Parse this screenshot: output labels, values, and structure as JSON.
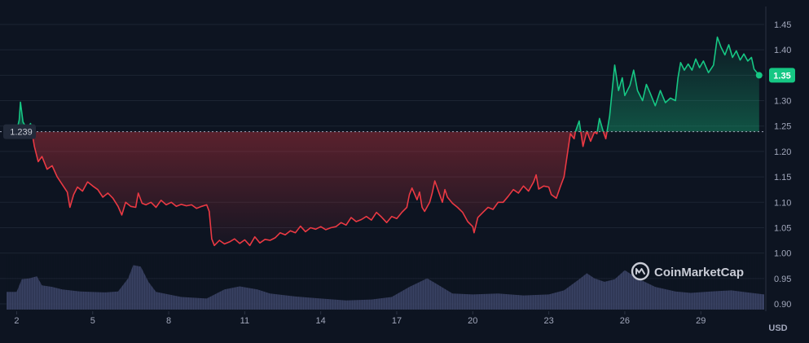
{
  "chart_data": {
    "type": "line",
    "unit": "USD",
    "baseline": {
      "value": 1.239,
      "label": "1.239"
    },
    "current": {
      "value": 1.35,
      "label": "1.35"
    },
    "ylim": [
      0.9,
      1.45
    ],
    "price_range": [
      1.0,
      1.45
    ],
    "y_ticks": [
      "1.45",
      "1.40",
      "1.35",
      "1.30",
      "1.25",
      "1.20",
      "1.15",
      "1.10",
      "1.05",
      "1.00",
      "0.95",
      "0.90"
    ],
    "x_ticks": [
      "2",
      "5",
      "8",
      "11",
      "14",
      "17",
      "20",
      "23",
      "26",
      "29"
    ],
    "xlim": [
      1.6,
      31.5
    ],
    "colors": {
      "up": "#16c784",
      "down": "#ea3943",
      "volume": "#424a6e",
      "background": "#0d1421",
      "grid": "#1c2433"
    },
    "watermark": "CoinMarketCap",
    "grid": true,
    "series": [
      {
        "values": [
          [
            2.0,
            1.24
          ],
          [
            2.1,
            1.262
          ],
          [
            2.15,
            1.297
          ],
          [
            2.25,
            1.258
          ],
          [
            2.4,
            1.245
          ],
          [
            2.55,
            1.255
          ],
          [
            2.7,
            1.21
          ],
          [
            2.85,
            1.18
          ],
          [
            3.0,
            1.19
          ],
          [
            3.2,
            1.165
          ],
          [
            3.4,
            1.172
          ],
          [
            3.6,
            1.15
          ],
          [
            3.8,
            1.135
          ],
          [
            4.0,
            1.12
          ],
          [
            4.1,
            1.09
          ],
          [
            4.25,
            1.115
          ],
          [
            4.4,
            1.13
          ],
          [
            4.6,
            1.122
          ],
          [
            4.8,
            1.14
          ],
          [
            5.0,
            1.132
          ],
          [
            5.2,
            1.125
          ],
          [
            5.4,
            1.11
          ],
          [
            5.6,
            1.118
          ],
          [
            5.8,
            1.108
          ],
          [
            6.0,
            1.092
          ],
          [
            6.15,
            1.075
          ],
          [
            6.3,
            1.1
          ],
          [
            6.5,
            1.092
          ],
          [
            6.7,
            1.09
          ],
          [
            6.8,
            1.118
          ],
          [
            6.95,
            1.098
          ],
          [
            7.1,
            1.095
          ],
          [
            7.3,
            1.1
          ],
          [
            7.5,
            1.09
          ],
          [
            7.7,
            1.104
          ],
          [
            7.9,
            1.095
          ],
          [
            8.1,
            1.1
          ],
          [
            8.3,
            1.092
          ],
          [
            8.5,
            1.096
          ],
          [
            8.7,
            1.093
          ],
          [
            8.9,
            1.095
          ],
          [
            9.1,
            1.088
          ],
          [
            9.3,
            1.092
          ],
          [
            9.5,
            1.095
          ],
          [
            9.6,
            1.082
          ],
          [
            9.7,
            1.028
          ],
          [
            9.8,
            1.015
          ],
          [
            10.0,
            1.025
          ],
          [
            10.2,
            1.018
          ],
          [
            10.4,
            1.022
          ],
          [
            10.6,
            1.028
          ],
          [
            10.8,
            1.019
          ],
          [
            11.0,
            1.026
          ],
          [
            11.2,
            1.015
          ],
          [
            11.4,
            1.032
          ],
          [
            11.6,
            1.02
          ],
          [
            11.8,
            1.027
          ],
          [
            12.0,
            1.025
          ],
          [
            12.2,
            1.03
          ],
          [
            12.4,
            1.04
          ],
          [
            12.6,
            1.036
          ],
          [
            12.8,
            1.044
          ],
          [
            13.0,
            1.04
          ],
          [
            13.2,
            1.053
          ],
          [
            13.4,
            1.042
          ],
          [
            13.6,
            1.05
          ],
          [
            13.8,
            1.047
          ],
          [
            14.0,
            1.052
          ],
          [
            14.2,
            1.046
          ],
          [
            14.4,
            1.05
          ],
          [
            14.6,
            1.052
          ],
          [
            14.8,
            1.06
          ],
          [
            15.0,
            1.055
          ],
          [
            15.2,
            1.07
          ],
          [
            15.4,
            1.062
          ],
          [
            15.6,
            1.066
          ],
          [
            15.8,
            1.072
          ],
          [
            16.0,
            1.065
          ],
          [
            16.2,
            1.08
          ],
          [
            16.4,
            1.071
          ],
          [
            16.6,
            1.06
          ],
          [
            16.8,
            1.072
          ],
          [
            17.0,
            1.068
          ],
          [
            17.2,
            1.08
          ],
          [
            17.4,
            1.09
          ],
          [
            17.5,
            1.115
          ],
          [
            17.6,
            1.128
          ],
          [
            17.8,
            1.105
          ],
          [
            17.9,
            1.12
          ],
          [
            18.0,
            1.09
          ],
          [
            18.1,
            1.082
          ],
          [
            18.3,
            1.1
          ],
          [
            18.4,
            1.118
          ],
          [
            18.5,
            1.142
          ],
          [
            18.6,
            1.128
          ],
          [
            18.8,
            1.1
          ],
          [
            18.9,
            1.125
          ],
          [
            19.0,
            1.11
          ],
          [
            19.2,
            1.098
          ],
          [
            19.4,
            1.09
          ],
          [
            19.6,
            1.08
          ],
          [
            19.8,
            1.062
          ],
          [
            20.0,
            1.052
          ],
          [
            20.05,
            1.04
          ],
          [
            20.2,
            1.07
          ],
          [
            20.4,
            1.08
          ],
          [
            20.6,
            1.09
          ],
          [
            20.8,
            1.086
          ],
          [
            21.0,
            1.1
          ],
          [
            21.2,
            1.1
          ],
          [
            21.4,
            1.112
          ],
          [
            21.6,
            1.125
          ],
          [
            21.8,
            1.118
          ],
          [
            22.0,
            1.132
          ],
          [
            22.2,
            1.122
          ],
          [
            22.4,
            1.14
          ],
          [
            22.5,
            1.154
          ],
          [
            22.6,
            1.126
          ],
          [
            22.8,
            1.132
          ],
          [
            23.0,
            1.13
          ],
          [
            23.1,
            1.115
          ],
          [
            23.3,
            1.108
          ],
          [
            23.45,
            1.13
          ],
          [
            23.6,
            1.15
          ],
          [
            23.75,
            1.2
          ],
          [
            23.85,
            1.235
          ],
          [
            24.0,
            1.225
          ],
          [
            24.05,
            1.239
          ],
          [
            24.2,
            1.26
          ],
          [
            24.35,
            1.21
          ],
          [
            24.5,
            1.24
          ],
          [
            24.65,
            1.22
          ],
          [
            24.8,
            1.238
          ],
          [
            24.9,
            1.235
          ],
          [
            25.0,
            1.265
          ],
          [
            25.15,
            1.239
          ],
          [
            25.25,
            1.225
          ],
          [
            25.4,
            1.27
          ],
          [
            25.5,
            1.32
          ],
          [
            25.6,
            1.37
          ],
          [
            25.75,
            1.32
          ],
          [
            25.9,
            1.345
          ],
          [
            26.0,
            1.31
          ],
          [
            26.2,
            1.33
          ],
          [
            26.35,
            1.36
          ],
          [
            26.5,
            1.32
          ],
          [
            26.7,
            1.3
          ],
          [
            26.85,
            1.332
          ],
          [
            27.0,
            1.315
          ],
          [
            27.2,
            1.29
          ],
          [
            27.4,
            1.32
          ],
          [
            27.6,
            1.296
          ],
          [
            27.8,
            1.305
          ],
          [
            28.0,
            1.3
          ],
          [
            28.1,
            1.345
          ],
          [
            28.2,
            1.375
          ],
          [
            28.35,
            1.36
          ],
          [
            28.5,
            1.372
          ],
          [
            28.65,
            1.36
          ],
          [
            28.8,
            1.382
          ],
          [
            28.95,
            1.365
          ],
          [
            29.1,
            1.378
          ],
          [
            29.3,
            1.355
          ],
          [
            29.5,
            1.37
          ],
          [
            29.65,
            1.425
          ],
          [
            29.8,
            1.405
          ],
          [
            29.95,
            1.39
          ],
          [
            30.1,
            1.41
          ],
          [
            30.25,
            1.385
          ],
          [
            30.4,
            1.398
          ],
          [
            30.55,
            1.38
          ],
          [
            30.7,
            1.392
          ],
          [
            30.85,
            1.378
          ],
          [
            31.0,
            1.385
          ],
          [
            31.1,
            1.362
          ],
          [
            31.3,
            1.35
          ]
        ]
      }
    ],
    "volume": {
      "ylim": [
        0,
        1
      ],
      "values": [
        [
          1.6,
          0.35
        ],
        [
          2.0,
          0.35
        ],
        [
          2.2,
          0.6
        ],
        [
          2.5,
          0.62
        ],
        [
          2.8,
          0.66
        ],
        [
          3.0,
          0.48
        ],
        [
          3.4,
          0.45
        ],
        [
          3.8,
          0.4
        ],
        [
          4.5,
          0.36
        ],
        [
          5.5,
          0.34
        ],
        [
          6.0,
          0.36
        ],
        [
          6.4,
          0.62
        ],
        [
          6.6,
          0.88
        ],
        [
          6.9,
          0.85
        ],
        [
          7.2,
          0.55
        ],
        [
          7.5,
          0.35
        ],
        [
          8.5,
          0.25
        ],
        [
          9.5,
          0.22
        ],
        [
          10.2,
          0.4
        ],
        [
          10.8,
          0.46
        ],
        [
          11.5,
          0.4
        ],
        [
          12.0,
          0.32
        ],
        [
          13.0,
          0.26
        ],
        [
          14.0,
          0.22
        ],
        [
          15.0,
          0.18
        ],
        [
          16.0,
          0.2
        ],
        [
          16.8,
          0.25
        ],
        [
          17.5,
          0.45
        ],
        [
          18.2,
          0.62
        ],
        [
          18.6,
          0.5
        ],
        [
          19.2,
          0.32
        ],
        [
          20.0,
          0.3
        ],
        [
          21.0,
          0.32
        ],
        [
          22.0,
          0.28
        ],
        [
          23.0,
          0.3
        ],
        [
          23.6,
          0.38
        ],
        [
          24.2,
          0.6
        ],
        [
          24.5,
          0.72
        ],
        [
          24.8,
          0.62
        ],
        [
          25.2,
          0.55
        ],
        [
          25.6,
          0.6
        ],
        [
          26.0,
          0.78
        ],
        [
          26.5,
          0.62
        ],
        [
          27.2,
          0.45
        ],
        [
          28.0,
          0.36
        ],
        [
          28.6,
          0.33
        ],
        [
          29.4,
          0.36
        ],
        [
          30.2,
          0.38
        ],
        [
          31.0,
          0.33
        ],
        [
          31.5,
          0.3
        ]
      ]
    }
  }
}
